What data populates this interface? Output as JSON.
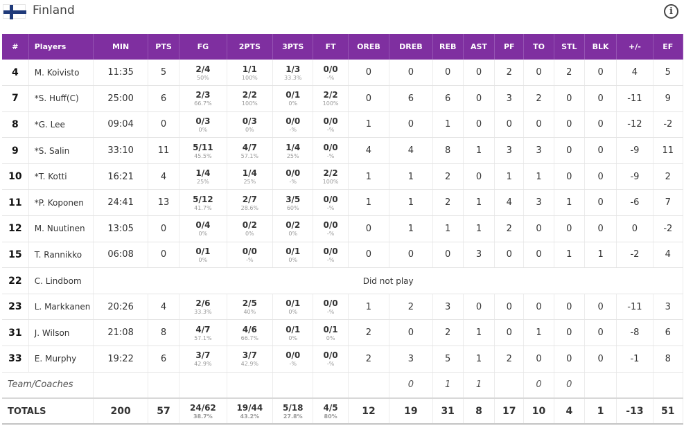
{
  "header": {
    "team": "Finland",
    "flag_icon": "finland-flag-icon",
    "info_icon": "info-icon"
  },
  "columns": [
    "#",
    "Players",
    "MIN",
    "PTS",
    "FG",
    "2PTS",
    "3PTS",
    "FT",
    "OREB",
    "DREB",
    "REB",
    "AST",
    "PF",
    "TO",
    "STL",
    "BLK",
    "+/-",
    "EF"
  ],
  "players": [
    {
      "num": "4",
      "name": "M. Koivisto",
      "min": "11:35",
      "pts": "5",
      "fg": "2/4",
      "fg_pct": "50%",
      "p2": "1/1",
      "p2_pct": "100%",
      "p3": "1/3",
      "p3_pct": "33.3%",
      "ft": "0/0",
      "ft_pct": "-%",
      "oreb": "0",
      "dreb": "0",
      "reb": "0",
      "ast": "0",
      "pf": "2",
      "to": "0",
      "stl": "2",
      "blk": "0",
      "pm": "4",
      "ef": "5"
    },
    {
      "num": "7",
      "name": "*S. Huff(C)",
      "min": "25:00",
      "pts": "6",
      "fg": "2/3",
      "fg_pct": "66.7%",
      "p2": "2/2",
      "p2_pct": "100%",
      "p3": "0/1",
      "p3_pct": "0%",
      "ft": "2/2",
      "ft_pct": "100%",
      "oreb": "0",
      "dreb": "6",
      "reb": "6",
      "ast": "0",
      "pf": "3",
      "to": "2",
      "stl": "0",
      "blk": "0",
      "pm": "-11",
      "ef": "9"
    },
    {
      "num": "8",
      "name": "*G. Lee",
      "min": "09:04",
      "pts": "0",
      "fg": "0/3",
      "fg_pct": "0%",
      "p2": "0/3",
      "p2_pct": "0%",
      "p3": "0/0",
      "p3_pct": "-%",
      "ft": "0/0",
      "ft_pct": "-%",
      "oreb": "1",
      "dreb": "0",
      "reb": "1",
      "ast": "0",
      "pf": "0",
      "to": "0",
      "stl": "0",
      "blk": "0",
      "pm": "-12",
      "ef": "-2"
    },
    {
      "num": "9",
      "name": "*S. Salin",
      "min": "33:10",
      "pts": "11",
      "fg": "5/11",
      "fg_pct": "45.5%",
      "p2": "4/7",
      "p2_pct": "57.1%",
      "p3": "1/4",
      "p3_pct": "25%",
      "ft": "0/0",
      "ft_pct": "-%",
      "oreb": "4",
      "dreb": "4",
      "reb": "8",
      "ast": "1",
      "pf": "3",
      "to": "3",
      "stl": "0",
      "blk": "0",
      "pm": "-9",
      "ef": "11"
    },
    {
      "num": "10",
      "name": "*T. Kotti",
      "min": "16:21",
      "pts": "4",
      "fg": "1/4",
      "fg_pct": "25%",
      "p2": "1/4",
      "p2_pct": "25%",
      "p3": "0/0",
      "p3_pct": "-%",
      "ft": "2/2",
      "ft_pct": "100%",
      "oreb": "1",
      "dreb": "1",
      "reb": "2",
      "ast": "0",
      "pf": "1",
      "to": "1",
      "stl": "0",
      "blk": "0",
      "pm": "-9",
      "ef": "2"
    },
    {
      "num": "11",
      "name": "*P. Koponen",
      "min": "24:41",
      "pts": "13",
      "fg": "5/12",
      "fg_pct": "41.7%",
      "p2": "2/7",
      "p2_pct": "28.6%",
      "p3": "3/5",
      "p3_pct": "60%",
      "ft": "0/0",
      "ft_pct": "-%",
      "oreb": "1",
      "dreb": "1",
      "reb": "2",
      "ast": "1",
      "pf": "4",
      "to": "3",
      "stl": "1",
      "blk": "0",
      "pm": "-6",
      "ef": "7"
    },
    {
      "num": "12",
      "name": "M. Nuutinen",
      "min": "13:05",
      "pts": "0",
      "fg": "0/4",
      "fg_pct": "0%",
      "p2": "0/2",
      "p2_pct": "0%",
      "p3": "0/2",
      "p3_pct": "0%",
      "ft": "0/0",
      "ft_pct": "-%",
      "oreb": "0",
      "dreb": "1",
      "reb": "1",
      "ast": "1",
      "pf": "2",
      "to": "0",
      "stl": "0",
      "blk": "0",
      "pm": "0",
      "ef": "-2"
    },
    {
      "num": "15",
      "name": "T. Rannikko",
      "min": "06:08",
      "pts": "0",
      "fg": "0/1",
      "fg_pct": "0%",
      "p2": "0/0",
      "p2_pct": "-%",
      "p3": "0/1",
      "p3_pct": "0%",
      "ft": "0/0",
      "ft_pct": "-%",
      "oreb": "0",
      "dreb": "0",
      "reb": "0",
      "ast": "3",
      "pf": "0",
      "to": "0",
      "stl": "1",
      "blk": "1",
      "pm": "-2",
      "ef": "4"
    },
    {
      "num": "22",
      "name": "C. Lindbom",
      "dnp": "Did not play"
    },
    {
      "num": "23",
      "name": "L. Markkanen",
      "min": "20:26",
      "pts": "4",
      "fg": "2/6",
      "fg_pct": "33.3%",
      "p2": "2/5",
      "p2_pct": "40%",
      "p3": "0/1",
      "p3_pct": "0%",
      "ft": "0/0",
      "ft_pct": "-%",
      "oreb": "1",
      "dreb": "2",
      "reb": "3",
      "ast": "0",
      "pf": "0",
      "to": "0",
      "stl": "0",
      "blk": "0",
      "pm": "-11",
      "ef": "3"
    },
    {
      "num": "31",
      "name": "J. Wilson",
      "min": "21:08",
      "pts": "8",
      "fg": "4/7",
      "fg_pct": "57.1%",
      "p2": "4/6",
      "p2_pct": "66.7%",
      "p3": "0/1",
      "p3_pct": "0%",
      "ft": "0/1",
      "ft_pct": "0%",
      "oreb": "2",
      "dreb": "0",
      "reb": "2",
      "ast": "1",
      "pf": "0",
      "to": "1",
      "stl": "0",
      "blk": "0",
      "pm": "-8",
      "ef": "6"
    },
    {
      "num": "33",
      "name": "E. Murphy",
      "min": "19:22",
      "pts": "6",
      "fg": "3/7",
      "fg_pct": "42.9%",
      "p2": "3/7",
      "p2_pct": "42.9%",
      "p3": "0/0",
      "p3_pct": "-%",
      "ft": "0/0",
      "ft_pct": "-%",
      "oreb": "2",
      "dreb": "3",
      "reb": "5",
      "ast": "1",
      "pf": "2",
      "to": "0",
      "stl": "0",
      "blk": "0",
      "pm": "-1",
      "ef": "8"
    }
  ],
  "team_coaches": {
    "label": "Team/Coaches",
    "oreb": "0",
    "dreb": "1",
    "reb": "1",
    "pf": "0",
    "to": "0"
  },
  "totals": {
    "label": "TOTALS",
    "min": "200",
    "pts": "57",
    "fg": "24/62",
    "fg_pct": "38.7%",
    "p2": "19/44",
    "p2_pct": "43.2%",
    "p3": "5/18",
    "p3_pct": "27.8%",
    "ft": "4/5",
    "ft_pct": "80%",
    "oreb": "12",
    "dreb": "19",
    "reb": "31",
    "ast": "8",
    "pf": "17",
    "to": "10",
    "stl": "4",
    "blk": "1",
    "pm": "-13",
    "ef": "51"
  }
}
